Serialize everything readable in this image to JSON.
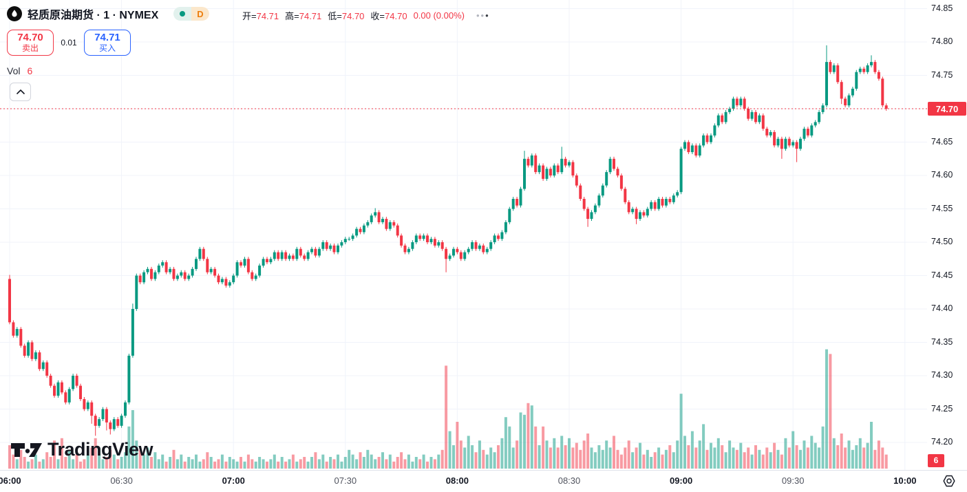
{
  "header": {
    "symbol_title": "轻质原油期货 · 1 · NYMEX",
    "timeframe_badge": "D",
    "ohlc_items": [
      {
        "label": "开=",
        "value": "74.71"
      },
      {
        "label": "高=",
        "value": "74.71"
      },
      {
        "label": "低=",
        "value": "74.70"
      },
      {
        "label": "收=",
        "value": "74.70"
      }
    ],
    "change": "0.00 (0.00%)"
  },
  "trade_panel": {
    "sell_price": "74.70",
    "sell_label": "卖出",
    "spread": "0.01",
    "buy_price": "74.71",
    "buy_label": "买入"
  },
  "volume_legend": {
    "label": "Vol",
    "value": "6"
  },
  "price_badge": "74.70",
  "volume_badge": "6",
  "watermark": "TradingView",
  "colors": {
    "up": "#089981",
    "down": "#F23645",
    "volume_up": "rgba(8,153,129,0.5)",
    "volume_down": "rgba(242,54,69,0.5)",
    "grid": "#f0f3fa",
    "price_line": "#F23645"
  },
  "chart_data": {
    "type": "candlestick+volume",
    "symbol": "轻质原油期货 (Light Crude Oil Futures)",
    "interval": "1 minute",
    "exchange": "NYMEX",
    "session_start": "06:00",
    "session_end": "10:00",
    "visible_price_range": [
      74.2,
      74.85
    ],
    "last_price": 74.7,
    "last_volume": 6,
    "price_ticks": [
      "74.85",
      "74.80",
      "74.75",
      "74.70",
      "74.65",
      "74.60",
      "74.55",
      "74.50",
      "74.45",
      "74.40",
      "74.35",
      "74.30",
      "74.25",
      "74.20"
    ],
    "time_ticks": [
      {
        "m": 0,
        "label": "06:00",
        "major": true
      },
      {
        "m": 30,
        "label": "06:30",
        "major": false
      },
      {
        "m": 60,
        "label": "07:00",
        "major": true
      },
      {
        "m": 90,
        "label": "07:30",
        "major": false
      },
      {
        "m": 120,
        "label": "08:00",
        "major": true
      },
      {
        "m": 150,
        "label": "08:30",
        "major": false
      },
      {
        "m": 180,
        "label": "09:00",
        "major": true
      },
      {
        "m": 210,
        "label": "09:30",
        "major": false
      },
      {
        "m": 240,
        "label": "10:00",
        "major": true
      }
    ],
    "first_open": 74.445,
    "default_wick": 0.003,
    "wick_overrides": {
      "0": {
        "h": 0.006
      },
      "22": {
        "l": 0.012
      },
      "23": {
        "l": 0.015
      },
      "26": {
        "l": 0.012
      },
      "27": {
        "l": 0.008
      },
      "33": {
        "h": 0.008
      },
      "98": {
        "h": 0.006
      },
      "117": {
        "l": 0.02
      },
      "138": {
        "h": 0.012
      },
      "148": {
        "h": 0.018
      },
      "155": {
        "l": 0.012
      },
      "168": {
        "l": 0.008
      },
      "207": {
        "l": 0.015
      },
      "211": {
        "l": 0.02
      },
      "219": {
        "h": 0.025
      },
      "223": {
        "l": 0.008
      },
      "231": {
        "h": 0.01
      }
    },
    "closes": [
      74.38,
      74.36,
      74.37,
      74.345,
      74.33,
      74.35,
      74.325,
      74.335,
      74.31,
      74.32,
      74.3,
      74.285,
      74.27,
      74.29,
      74.275,
      74.26,
      74.28,
      74.3,
      74.285,
      74.265,
      74.25,
      74.26,
      74.24,
      74.225,
      74.235,
      74.25,
      74.23,
      74.22,
      74.235,
      74.225,
      74.24,
      74.26,
      74.33,
      74.4,
      74.45,
      74.44,
      74.455,
      74.46,
      74.445,
      74.455,
      74.465,
      74.47,
      74.455,
      74.46,
      74.445,
      74.45,
      74.455,
      74.445,
      74.45,
      74.46,
      74.475,
      74.49,
      74.475,
      74.455,
      74.46,
      74.45,
      74.44,
      74.445,
      74.435,
      74.44,
      74.45,
      74.47,
      74.465,
      74.475,
      74.455,
      74.445,
      74.45,
      74.465,
      74.475,
      74.47,
      74.475,
      74.485,
      74.475,
      74.485,
      74.475,
      74.48,
      74.475,
      74.49,
      74.48,
      74.475,
      74.485,
      74.49,
      74.48,
      74.49,
      74.5,
      74.49,
      74.495,
      74.485,
      74.495,
      74.5,
      74.505,
      74.505,
      74.51,
      74.52,
      74.515,
      74.525,
      74.53,
      74.54,
      74.545,
      74.53,
      74.535,
      74.52,
      74.53,
      74.525,
      74.51,
      74.495,
      74.485,
      74.49,
      74.5,
      74.51,
      74.505,
      74.51,
      74.5,
      74.505,
      74.495,
      74.5,
      74.49,
      74.475,
      74.48,
      74.49,
      74.485,
      74.475,
      74.485,
      74.49,
      74.5,
      74.49,
      74.495,
      74.485,
      74.49,
      74.5,
      74.51,
      74.505,
      74.515,
      74.53,
      74.55,
      74.565,
      74.555,
      74.58,
      74.625,
      74.615,
      74.63,
      74.605,
      74.615,
      74.595,
      74.61,
      74.6,
      74.615,
      74.605,
      74.625,
      74.615,
      74.62,
      74.6,
      74.585,
      74.565,
      74.55,
      74.535,
      74.545,
      74.555,
      74.57,
      74.585,
      74.605,
      74.625,
      74.61,
      74.6,
      74.58,
      74.56,
      74.545,
      74.55,
      74.535,
      74.545,
      74.54,
      74.55,
      74.56,
      74.55,
      74.565,
      74.555,
      74.565,
      74.56,
      74.57,
      74.575,
      74.64,
      74.65,
      74.635,
      74.645,
      74.63,
      74.645,
      74.66,
      74.65,
      74.66,
      74.675,
      74.69,
      74.68,
      74.695,
      74.7,
      74.715,
      74.705,
      74.715,
      74.7,
      74.685,
      74.695,
      74.68,
      74.69,
      74.67,
      74.66,
      74.665,
      74.645,
      74.655,
      74.64,
      74.655,
      74.645,
      74.65,
      74.64,
      74.655,
      74.67,
      74.66,
      74.675,
      74.68,
      74.695,
      74.705,
      74.77,
      74.755,
      74.765,
      74.74,
      74.715,
      74.705,
      74.72,
      74.73,
      74.755,
      74.76,
      74.755,
      74.765,
      74.77,
      74.755,
      74.745,
      74.705,
      74.7
    ],
    "volumes": [
      10,
      6,
      4,
      8,
      5,
      3,
      4,
      6,
      3,
      4,
      7,
      5,
      12,
      4,
      13,
      5,
      8,
      4,
      6,
      3,
      4,
      6,
      9,
      13,
      9,
      4,
      5,
      8,
      6,
      4,
      5,
      7,
      18,
      25,
      12,
      8,
      6,
      9,
      5,
      7,
      4,
      6,
      3,
      5,
      8,
      4,
      6,
      3,
      5,
      4,
      6,
      3,
      4,
      7,
      5,
      3,
      4,
      6,
      3,
      5,
      4,
      3,
      5,
      3,
      6,
      4,
      3,
      5,
      4,
      3,
      4,
      6,
      3,
      5,
      3,
      4,
      6,
      3,
      4,
      5,
      3,
      5,
      7,
      4,
      6,
      3,
      5,
      4,
      6,
      3,
      5,
      8,
      6,
      4,
      7,
      5,
      8,
      6,
      4,
      5,
      7,
      4,
      6,
      3,
      5,
      7,
      4,
      6,
      3,
      5,
      4,
      6,
      3,
      5,
      4,
      6,
      8,
      44,
      16,
      10,
      20,
      12,
      9,
      14,
      10,
      7,
      12,
      8,
      6,
      9,
      7,
      10,
      13,
      22,
      18,
      9,
      12,
      24,
      23,
      28,
      27,
      18,
      10,
      18,
      12,
      9,
      13,
      9,
      14,
      10,
      13,
      9,
      11,
      8,
      12,
      15,
      9,
      7,
      10,
      8,
      12,
      9,
      14,
      8,
      6,
      9,
      12,
      7,
      9,
      11,
      6,
      8,
      5,
      7,
      9,
      6,
      8,
      10,
      7,
      12,
      32,
      14,
      10,
      16,
      9,
      12,
      19,
      8,
      11,
      9,
      13,
      10,
      7,
      12,
      9,
      8,
      11,
      7,
      9,
      6,
      10,
      8,
      6,
      9,
      7,
      11,
      8,
      6,
      13,
      9,
      16,
      10,
      8,
      12,
      9,
      14,
      11,
      9,
      18,
      51,
      49,
      13,
      10,
      15,
      9,
      12,
      8,
      10,
      13,
      9,
      11,
      20,
      8,
      12,
      9,
      6
    ]
  }
}
